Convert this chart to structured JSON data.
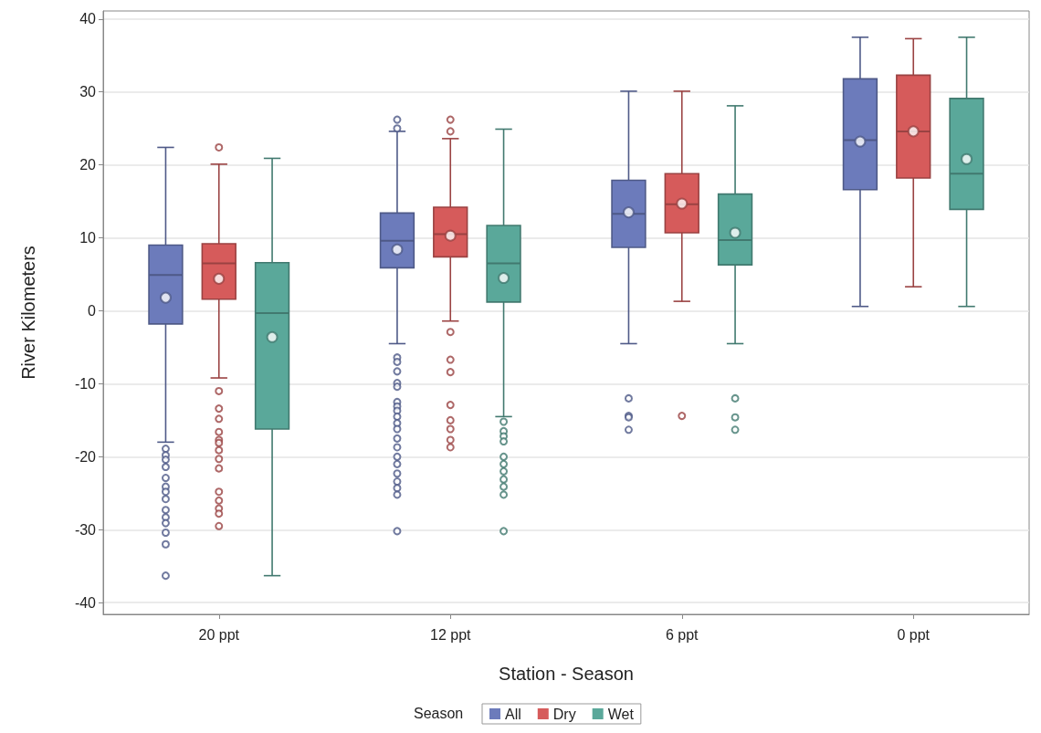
{
  "chart_data": {
    "type": "box",
    "xlabel": "Station - Season",
    "ylabel": "River Kilometers",
    "legend_title": "Season",
    "legend": "bottom",
    "grid": "y",
    "marker": "circle",
    "categories": [
      "20 ppt",
      "12 ppt",
      "6 ppt",
      "0 ppt"
    ],
    "ylim": [
      -41.6,
      41.1
    ],
    "yticks": [
      -40,
      -30,
      -20,
      -10,
      0,
      10,
      20,
      30,
      40
    ],
    "series": [
      {
        "name": "All",
        "color": "#6c7bbb",
        "boxes": [
          {
            "low": -18.0,
            "q1": -1.8,
            "median": 4.9,
            "q3": 9.0,
            "high": 22.4,
            "mean": 1.8,
            "outliers": [
              -18.9,
              -19.8,
              -20.4,
              -21.4,
              -22.9,
              -24.1,
              -24.8,
              -25.8,
              -27.3,
              -28.3,
              -29.1,
              -30.4,
              -32.0,
              -36.3
            ]
          },
          {
            "low": -4.5,
            "q1": 5.9,
            "median": 9.6,
            "q3": 13.4,
            "high": 24.6,
            "mean": 8.4,
            "outliers": [
              26.2,
              25.0,
              -6.4,
              -7.0,
              -8.3,
              -9.9,
              -10.4,
              -12.5,
              -13.1,
              -13.7,
              -14.5,
              -15.4,
              -16.2,
              -17.5,
              -18.7,
              -20.0,
              -21.0,
              -22.3,
              -23.4,
              -24.3,
              -25.2,
              -30.2
            ]
          },
          {
            "low": -4.5,
            "q1": 8.7,
            "median": 13.3,
            "q3": 17.9,
            "high": 30.1,
            "mean": 13.5,
            "outliers": [
              -12.0,
              -14.4,
              -14.6,
              -16.3
            ]
          },
          {
            "low": 0.6,
            "q1": 16.6,
            "median": 23.4,
            "q3": 31.8,
            "high": 37.5,
            "mean": 23.2
          }
        ]
      },
      {
        "name": "Dry",
        "color": "#d65b5b",
        "boxes": [
          {
            "low": -9.2,
            "q1": 1.6,
            "median": 6.5,
            "q3": 9.2,
            "high": 20.1,
            "mean": 4.4,
            "outliers": [
              22.4,
              -11.0,
              -13.4,
              -14.8,
              -16.6,
              -17.7,
              -18.1,
              -19.1,
              -20.3,
              -21.6,
              -24.8,
              -26.0,
              -27.1,
              -27.8,
              -29.5
            ]
          },
          {
            "low": -1.4,
            "q1": 7.4,
            "median": 10.5,
            "q3": 14.2,
            "high": 23.6,
            "mean": 10.3,
            "outliers": [
              26.2,
              24.6,
              -2.9,
              -6.7,
              -8.4,
              -12.9,
              -15.0,
              -16.2,
              -17.7,
              -18.7
            ]
          },
          {
            "low": 1.3,
            "q1": 10.7,
            "median": 14.6,
            "q3": 18.8,
            "high": 30.1,
            "mean": 14.7,
            "outliers": [
              -14.4
            ]
          },
          {
            "low": 3.3,
            "q1": 18.2,
            "median": 24.6,
            "q3": 32.3,
            "high": 37.3,
            "mean": 24.6
          }
        ]
      },
      {
        "name": "Wet",
        "color": "#5aa89a",
        "boxes": [
          {
            "low": -36.3,
            "q1": -16.2,
            "median": -0.3,
            "q3": 6.6,
            "high": 20.9,
            "mean": -3.6
          },
          {
            "low": -14.5,
            "q1": 1.2,
            "median": 6.5,
            "q3": 11.7,
            "high": 24.9,
            "mean": 4.5,
            "outliers": [
              -15.2,
              -16.5,
              -17.2,
              -17.9,
              -20.0,
              -21.0,
              -22.0,
              -23.1,
              -24.1,
              -25.2,
              -30.2
            ]
          },
          {
            "low": -4.5,
            "q1": 6.3,
            "median": 9.7,
            "q3": 16.0,
            "high": 28.1,
            "mean": 10.7,
            "outliers": [
              -12.0,
              -14.6,
              -16.3
            ]
          },
          {
            "low": 0.6,
            "q1": 13.9,
            "median": 18.8,
            "q3": 29.1,
            "high": 37.5,
            "mean": 20.8
          }
        ]
      }
    ]
  }
}
